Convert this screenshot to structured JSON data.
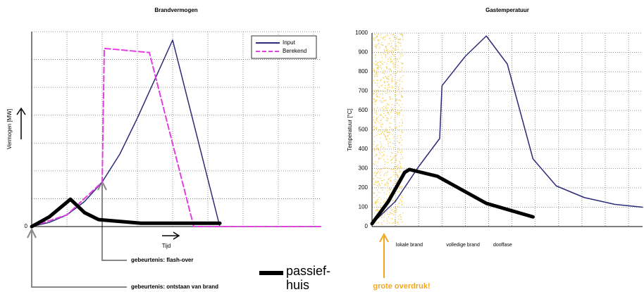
{
  "chart_data": [
    {
      "type": "line",
      "title": "Brandvermogen",
      "ylabel": "Vermogen [MW]",
      "xlabel": "Tijd",
      "xlim": [
        0,
        8.2
      ],
      "ylim": [
        0,
        7
      ],
      "xticks": [
        0,
        1,
        2,
        3,
        4,
        5,
        6,
        7,
        8
      ],
      "yticks": [
        0,
        {
          "value": 1,
          "label": null
        },
        {
          "value": 2,
          "label": null
        },
        {
          "value": 3,
          "label": null
        },
        {
          "value": 4,
          "label": null
        },
        {
          "value": 5,
          "label": null
        },
        {
          "value": 6,
          "label": null
        },
        {
          "value": 7,
          "label": null
        }
      ],
      "grid": true,
      "legend": "upper right",
      "series": [
        {
          "name": "Input",
          "color": "#2b2b7a",
          "line_width": 1.5,
          "dashed": false,
          "x": [
            0,
            0.5,
            1,
            1.5,
            2,
            2.5,
            3,
            3.5,
            4,
            5.34
          ],
          "values": [
            0,
            0.15,
            0.42,
            0.9,
            1.6,
            2.6,
            3.9,
            5.3,
            6.7,
            0
          ]
        },
        {
          "name": "Berekend",
          "color": "#e040e0",
          "line_width": 2,
          "dashed": true,
          "x": [
            0,
            1,
            2,
            2.06,
            3.34,
            4.6,
            8.2
          ],
          "values": [
            0,
            0.42,
            1.6,
            6.4,
            6.25,
            0,
            0
          ]
        },
        {
          "color": "#000000",
          "line_width": 5,
          "dashed": false,
          "in_legend": false,
          "x": [
            0,
            0.5,
            1.1,
            1.5,
            1.9,
            3.1,
            5.34
          ],
          "values": [
            0,
            0.35,
            0.98,
            0.5,
            0.25,
            0.12,
            0.12
          ]
        }
      ],
      "annotations": [
        "gebeurtenis: flash-over",
        "gebeurtenis: ontstaan van brand"
      ],
      "extra_legend": [
        "passief-",
        "huis"
      ]
    },
    {
      "type": "line",
      "title": "Gastemperatuur",
      "ylabel": "Temperatuur [°C]",
      "xlim": [
        0,
        11.6
      ],
      "ylim": [
        0,
        1000
      ],
      "xticks": [
        0,
        1,
        2,
        3,
        4,
        5,
        6,
        7,
        8,
        9,
        10,
        11
      ],
      "yticks": [
        0,
        100,
        200,
        300,
        400,
        500,
        600,
        700,
        800,
        900,
        1000
      ],
      "grid": true,
      "series": [
        {
          "color": "#2b2b7a",
          "line_width": 1.5,
          "dashed": false,
          "x": [
            0,
            1,
            2,
            2.9,
            3,
            4,
            4.9,
            5.8,
            6.9,
            7.9,
            9.1,
            10.4,
            11.6
          ],
          "values": [
            15,
            130,
            310,
            455,
            728,
            880,
            985,
            840,
            350,
            210,
            150,
            115,
            100
          ]
        },
        {
          "color": "#000000",
          "line_width": 5,
          "dashed": false,
          "x": [
            0,
            0.7,
            1.4,
            1.6,
            2.8,
            4.9,
            6.9
          ],
          "values": [
            15,
            130,
            280,
            295,
            260,
            120,
            50
          ]
        }
      ],
      "phase_labels": [
        {
          "x": 1.6,
          "label": "lokale brand"
        },
        {
          "x": 3.9,
          "label": "volledige brand"
        },
        {
          "x": 5.6,
          "label": "dooffase"
        }
      ],
      "annotations": [
        "grote overdruk!"
      ]
    }
  ]
}
